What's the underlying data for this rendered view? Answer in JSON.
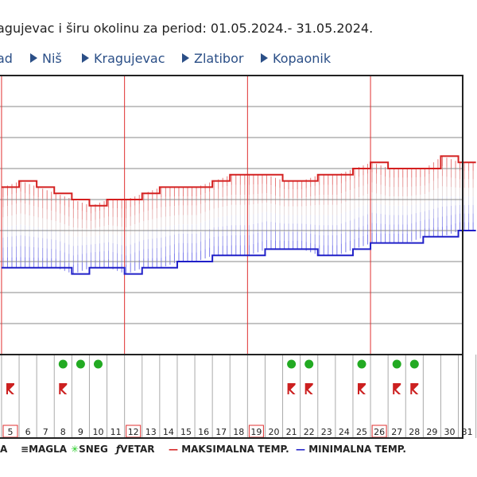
{
  "title": "agujevac i širu okolinu za period: 01.05.2024.- 31.05.2024.",
  "nav": [
    "ad",
    "Niš",
    "Kragujevac",
    "Zlatibor",
    "Kopaonik"
  ],
  "legend": {
    "magla": "MAGLA",
    "sneg": "SNEG",
    "vetar": "VETAR",
    "max": "MAKSIMALNA TEMP.",
    "min": "MINIMALNA TEMP.",
    "left_fragment": "A"
  },
  "colors": {
    "max_line": "#d42020",
    "min_line": "#2020c8",
    "rain_dot": "#22aa22",
    "storm_icon": "#cc2020",
    "weekend": "#e03030",
    "grid": "#888888"
  },
  "chart_data": {
    "type": "line",
    "days": [
      5,
      6,
      7,
      8,
      9,
      10,
      11,
      12,
      13,
      14,
      15,
      16,
      17,
      18,
      19,
      20,
      21,
      22,
      23,
      24,
      25,
      26,
      27,
      28,
      29,
      30,
      31
    ],
    "weekend_days": [
      5,
      12,
      19,
      26
    ],
    "series": [
      {
        "name": "MAKSIMALNA TEMP.",
        "values": [
          22,
          23,
          22,
          21,
          20,
          19,
          20,
          20,
          21,
          22,
          22,
          22,
          23,
          24,
          24,
          24,
          23,
          23,
          24,
          24,
          25,
          26,
          25,
          25,
          25,
          27,
          26
        ]
      },
      {
        "name": "MINIMALNA TEMP.",
        "values": [
          9,
          9,
          9,
          9,
          8,
          9,
          9,
          8,
          9,
          9,
          10,
          10,
          11,
          11,
          11,
          12,
          12,
          12,
          11,
          11,
          12,
          13,
          13,
          13,
          14,
          14,
          15
        ]
      }
    ],
    "rain_days": [
      8,
      9,
      10,
      21,
      22,
      25,
      27,
      28
    ],
    "storm_days": [
      5,
      8,
      21,
      22,
      25,
      27,
      28
    ],
    "rain_day_4_partial": true,
    "grid": true
  }
}
